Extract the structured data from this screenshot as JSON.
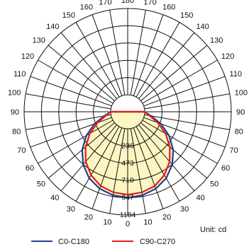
{
  "chart_data": {
    "type": "polar",
    "chart_kind": "luminous intensity distribution",
    "angle_labels": [
      "180",
      "170",
      "160",
      "150",
      "140",
      "130",
      "120",
      "110",
      "100",
      "90",
      "80",
      "70",
      "60",
      "50",
      "40",
      "30",
      "20",
      "10",
      "0"
    ],
    "angle_step_deg": 10,
    "radial_ticks": [
      236,
      473,
      710,
      947,
      1184
    ],
    "radial_max": 1184,
    "grid": true,
    "series": [
      {
        "name": "C0-C180",
        "color": "#1f3f95",
        "angles": [
          0,
          10,
          20,
          30,
          40,
          50,
          60,
          70,
          80,
          90
        ],
        "values": [
          946,
          930,
          890,
          820,
          715,
          580,
          420,
          250,
          90,
          0
        ]
      },
      {
        "name": "C90-C270",
        "color": "#e01e1e",
        "angles": [
          0,
          10,
          20,
          30,
          40,
          50,
          60,
          70,
          80,
          90
        ],
        "values": [
          905,
          890,
          850,
          770,
          660,
          520,
          365,
          205,
          70,
          0
        ]
      }
    ],
    "fill_color": "#fdf6c3",
    "legend_position": "bottom",
    "unit": "Unit: cd"
  }
}
